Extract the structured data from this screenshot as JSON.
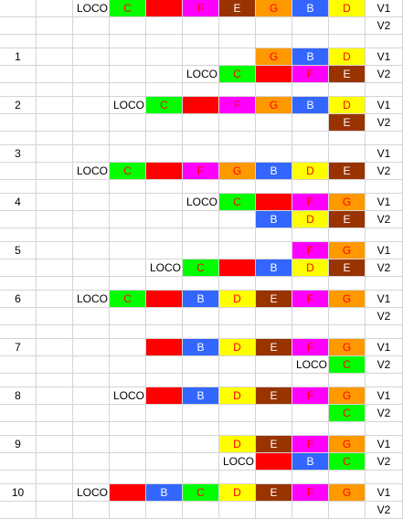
{
  "colors": {
    "C": "#00ff00",
    "A": "#ff0000",
    "F": "#ff00ff",
    "E": "#993300",
    "G": "#ff9900",
    "B": "#3366ff",
    "D": "#ffff00"
  },
  "labels": {
    "loco": "LOCO",
    "v1": "V1",
    "v2": "V2"
  },
  "steps": [
    {
      "number": "",
      "v1": [
        "LOCO",
        "C",
        "A",
        "F",
        "E",
        "G",
        "B",
        "D"
      ],
      "v2": []
    },
    {
      "number": "1",
      "v1": [
        "G",
        "B",
        "D"
      ],
      "v2": [
        "LOCO",
        "C",
        "A",
        "F",
        "E"
      ]
    },
    {
      "number": "2",
      "v1": [
        "LOCO",
        "C",
        "A",
        "F",
        "G",
        "B",
        "D"
      ],
      "v2": [
        "E"
      ]
    },
    {
      "number": "3",
      "v1": [],
      "v2": [
        "LOCO",
        "C",
        "A",
        "F",
        "G",
        "B",
        "D",
        "E"
      ]
    },
    {
      "number": "4",
      "v1": [
        "LOCO",
        "C",
        "A",
        "F",
        "G"
      ],
      "v2": [
        "B",
        "D",
        "E"
      ]
    },
    {
      "number": "5",
      "v1": [
        "F",
        "G"
      ],
      "v2": [
        "LOCO",
        "C",
        "A",
        "B",
        "D",
        "E"
      ]
    },
    {
      "number": "6",
      "v1": [
        "LOCO",
        "C",
        "A",
        "B",
        "D",
        "E",
        "F",
        "G"
      ],
      "v2": []
    },
    {
      "number": "7",
      "v1": [
        "A",
        "B",
        "D",
        "E",
        "F",
        "G"
      ],
      "v2": [
        "LOCO",
        "C"
      ]
    },
    {
      "number": "8",
      "v1": [
        "LOCO",
        "A",
        "B",
        "D",
        "E",
        "F",
        "G"
      ],
      "v2": [
        "C"
      ]
    },
    {
      "number": "9",
      "v1": [
        "D",
        "E",
        "F",
        "G"
      ],
      "v2": [
        "LOCO",
        "A",
        "B",
        "C"
      ]
    },
    {
      "number": "10",
      "v1": [
        "LOCO",
        "A",
        "B",
        "C",
        "D",
        "E",
        "F",
        "G"
      ],
      "v2": []
    }
  ]
}
